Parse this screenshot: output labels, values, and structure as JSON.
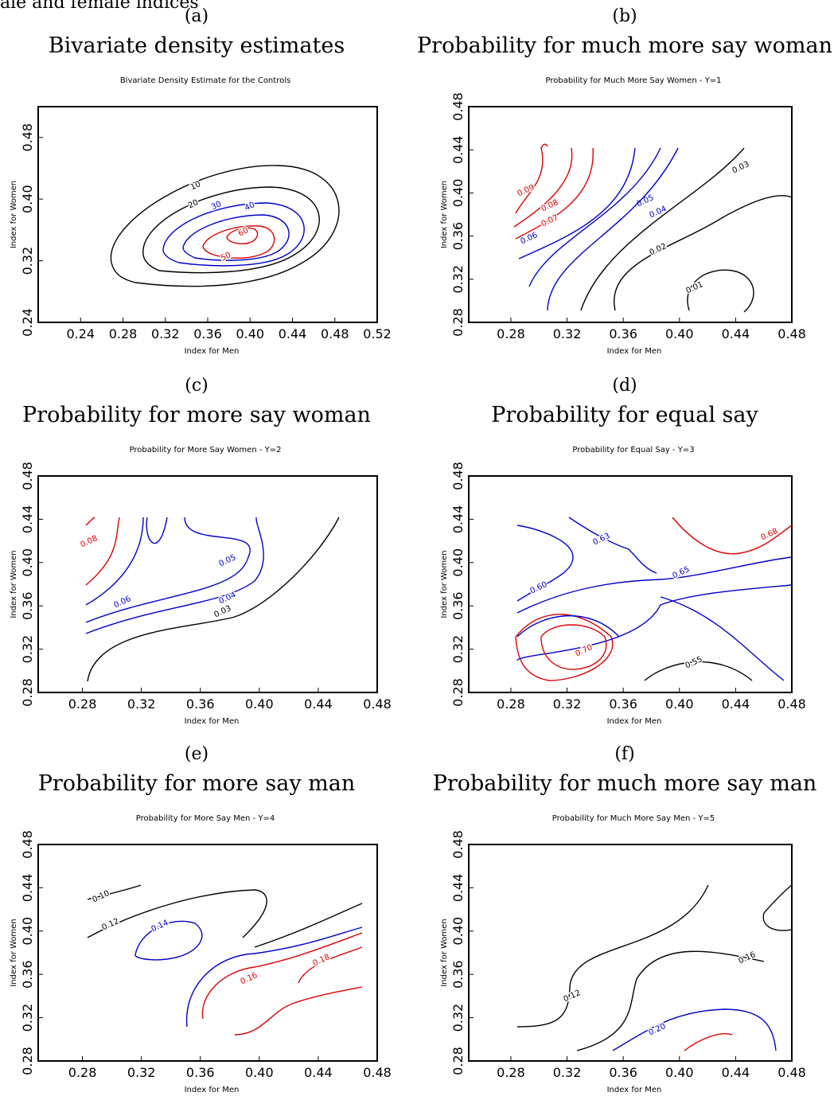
{
  "header_fragment": "ale and female indices",
  "colors": {
    "black": "#000000",
    "blue": "#0000cc",
    "red": "#dd0000"
  },
  "chart_data": [
    {
      "type": "contour",
      "panel_letter": "(a)",
      "caption": "Bivariate density estimates",
      "title": "Bivariate Density Estimate for the Controls",
      "xlabel": "Index for Men",
      "ylabel": "Index for Women",
      "xlim": [
        0.2,
        0.52
      ],
      "ylim": [
        0.24,
        0.52
      ],
      "xticks": [
        "0.24",
        "0.28",
        "0.32",
        "0.36",
        "0.40",
        "0.44",
        "0.48",
        "0.52"
      ],
      "yticks": [
        "0.24",
        "0.32",
        "0.40",
        "0.48"
      ],
      "contours": [
        {
          "level": "10",
          "color": "black"
        },
        {
          "level": "20",
          "color": "black"
        },
        {
          "level": "30",
          "color": "blue"
        },
        {
          "level": "40",
          "color": "blue"
        },
        {
          "level": "50",
          "color": "red"
        },
        {
          "level": "60",
          "color": "red"
        }
      ]
    },
    {
      "type": "contour",
      "panel_letter": "(b)",
      "caption": "Probability for much more say woman",
      "title": "Probability for Much More Say Women - Y=1",
      "xlabel": "Index for Men",
      "ylabel": "Index for Women",
      "xlim": [
        0.25,
        0.48
      ],
      "ylim": [
        0.28,
        0.48
      ],
      "xticks": [
        "0.28",
        "0.32",
        "0.36",
        "0.40",
        "0.44",
        "0.48"
      ],
      "yticks": [
        "0.28",
        "0.32",
        "0.36",
        "0.40",
        "0.44",
        "0.48"
      ],
      "contours": [
        {
          "level": "0.09",
          "color": "red"
        },
        {
          "level": "0.08",
          "color": "red"
        },
        {
          "level": "0.07",
          "color": "red"
        },
        {
          "level": "0.06",
          "color": "blue"
        },
        {
          "level": "0.05",
          "color": "blue"
        },
        {
          "level": "0.04",
          "color": "blue"
        },
        {
          "level": "0.03",
          "color": "black"
        },
        {
          "level": "0.02",
          "color": "black"
        },
        {
          "level": "0.01",
          "color": "black"
        }
      ]
    },
    {
      "type": "contour",
      "panel_letter": "(c)",
      "caption": "Probability for more say woman",
      "title": "Probability for More Say Women - Y=2",
      "xlabel": "Index for Men",
      "ylabel": "Index for Women",
      "xlim": [
        0.25,
        0.48
      ],
      "ylim": [
        0.28,
        0.48
      ],
      "xticks": [
        "0.28",
        "0.32",
        "0.36",
        "0.40",
        "0.44",
        "0.48"
      ],
      "yticks": [
        "0.28",
        "0.32",
        "0.36",
        "0.40",
        "0.44",
        "0.48"
      ],
      "contours": [
        {
          "level": "0.08",
          "color": "red"
        },
        {
          "level": "0.06",
          "color": "blue"
        },
        {
          "level": "0.05",
          "color": "blue"
        },
        {
          "level": "0.04",
          "color": "blue"
        },
        {
          "level": "0.03",
          "color": "black"
        }
      ]
    },
    {
      "type": "contour",
      "panel_letter": "(d)",
      "caption": "Probability for equal say",
      "title": "Probability for Equal Say - Y=3",
      "xlabel": "Index for Men",
      "ylabel": "Index for Women",
      "xlim": [
        0.25,
        0.48
      ],
      "ylim": [
        0.28,
        0.48
      ],
      "xticks": [
        "0.28",
        "0.32",
        "0.36",
        "0.40",
        "0.44",
        "0.48"
      ],
      "yticks": [
        "0.28",
        "0.32",
        "0.36",
        "0.40",
        "0.44",
        "0.48"
      ],
      "contours": [
        {
          "level": "0.63",
          "color": "blue"
        },
        {
          "level": "0.68",
          "color": "red"
        },
        {
          "level": "0.65",
          "color": "blue"
        },
        {
          "level": "0.60",
          "color": "blue"
        },
        {
          "level": "0.70",
          "color": "red"
        },
        {
          "level": "0.55",
          "color": "black"
        }
      ]
    },
    {
      "type": "contour",
      "panel_letter": "(e)",
      "caption": "Probability for more say man",
      "title": "Probability for More Say Men - Y=4",
      "xlabel": "Index for Men",
      "ylabel": "Index for Women",
      "xlim": [
        0.25,
        0.48
      ],
      "ylim": [
        0.28,
        0.48
      ],
      "xticks": [
        "0.28",
        "0.32",
        "0.36",
        "0.40",
        "0.44",
        "0.48"
      ],
      "yticks": [
        "0.28",
        "0.32",
        "0.36",
        "0.40",
        "0.44",
        "0.48"
      ],
      "contours": [
        {
          "level": "0.10",
          "color": "black"
        },
        {
          "level": "0.12",
          "color": "black"
        },
        {
          "level": "0.14",
          "color": "blue"
        },
        {
          "level": "0.16",
          "color": "red"
        },
        {
          "level": "0.18",
          "color": "red"
        }
      ]
    },
    {
      "type": "contour",
      "panel_letter": "(f)",
      "caption": "Probability for much more say man",
      "title": "Probability for Much More Say Men - Y=5",
      "xlabel": "Index for Men",
      "ylabel": "Index for Women",
      "xlim": [
        0.25,
        0.48
      ],
      "ylim": [
        0.28,
        0.48
      ],
      "xticks": [
        "0.28",
        "0.32",
        "0.36",
        "0.40",
        "0.44",
        "0.48"
      ],
      "yticks": [
        "0.28",
        "0.32",
        "0.36",
        "0.40",
        "0.44",
        "0.48"
      ],
      "contours": [
        {
          "level": "0.12",
          "color": "black"
        },
        {
          "level": "0.16",
          "color": "black"
        },
        {
          "level": "0.20",
          "color": "blue"
        }
      ]
    }
  ]
}
